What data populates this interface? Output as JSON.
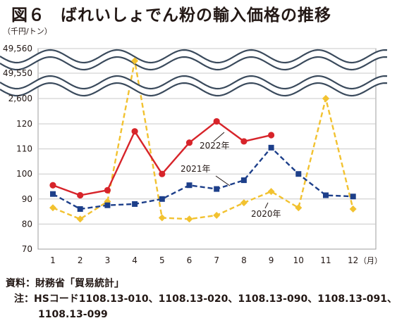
{
  "figure": {
    "number": "図６",
    "title": "ばれいしょでん粉の輸入価格の推移"
  },
  "chart_data": {
    "type": "line",
    "unit_label": "（千円/トン）",
    "x_unit_label": "（月）",
    "categories": [
      "1",
      "2",
      "3",
      "4",
      "5",
      "6",
      "7",
      "8",
      "9",
      "10",
      "11",
      "12"
    ],
    "y_ticks_main": [
      "70",
      "80",
      "90",
      "100",
      "110",
      "120"
    ],
    "y_ticks_broken": [
      "2,600",
      "49,550",
      "49,560"
    ],
    "ylim_main": [
      70,
      120
    ],
    "axis_breaks": [
      [
        120,
        2600
      ],
      [
        2600,
        49550
      ]
    ],
    "series": [
      {
        "name": "2020年",
        "color": "#f2c230",
        "style": "dashed",
        "marker": "diamond",
        "values": [
          86.5,
          82.0,
          89.0,
          49555,
          82.5,
          82.0,
          83.5,
          88.5,
          93.0,
          86.5,
          2600,
          86.0
        ]
      },
      {
        "name": "2021年",
        "color": "#1d3f8a",
        "style": "dashed",
        "marker": "square",
        "values": [
          92.0,
          86.0,
          87.5,
          88.0,
          90.0,
          95.5,
          94.0,
          97.5,
          110.5,
          100.0,
          91.5,
          91.0
        ]
      },
      {
        "name": "2022年",
        "color": "#d7242a",
        "style": "solid",
        "marker": "circle",
        "values": [
          95.5,
          91.5,
          93.5,
          117.0,
          100.0,
          112.5,
          121.0,
          113.0,
          115.5,
          null,
          null,
          null
        ]
      }
    ]
  },
  "notes": {
    "source_label": "資料：",
    "source_text": "財務省「貿易統計」",
    "note_label": "注：",
    "note_text": "HSコード1108.13-010、1108.13-020、1108.13-090、1108.13-091、",
    "note_text_cont": "1108.13-099"
  }
}
